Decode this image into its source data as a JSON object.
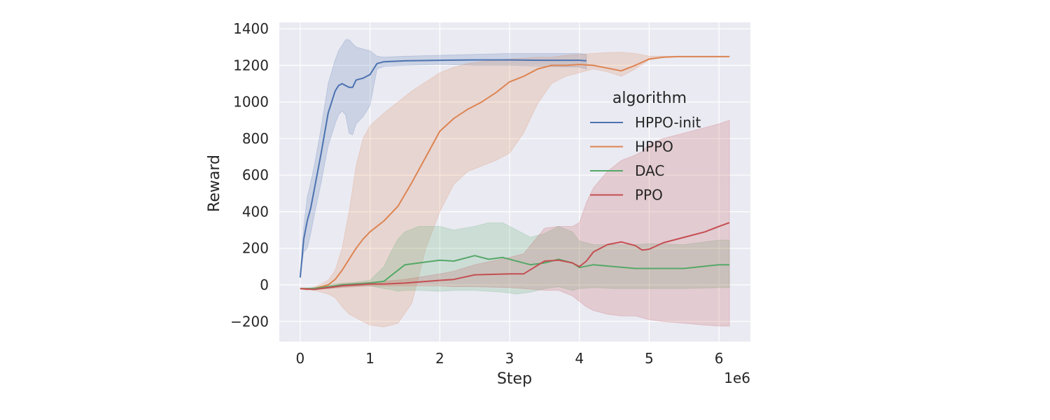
{
  "chart_data": {
    "type": "line",
    "xlabel": "Step",
    "ylabel": "Reward",
    "x_offset_label": "1e6",
    "x_scale": 1000000,
    "xlim": [
      -300000,
      6450000
    ],
    "ylim": [
      -310,
      1435
    ],
    "x_ticks": [
      0,
      1000000,
      2000000,
      3000000,
      4000000,
      5000000,
      6000000
    ],
    "x_tick_labels": [
      "0",
      "1",
      "2",
      "3",
      "4",
      "5",
      "6"
    ],
    "y_ticks": [
      -200,
      0,
      200,
      400,
      600,
      800,
      1000,
      1200,
      1400
    ],
    "y_tick_labels": [
      "−200",
      "0",
      "200",
      "400",
      "600",
      "800",
      "1000",
      "1200",
      "1400"
    ],
    "grid": true,
    "legend": {
      "title": "algorithm",
      "placement": "center-right"
    },
    "series": [
      {
        "name": "HPPO-init",
        "color": "#4c72b0",
        "x": [
          0,
          50000,
          100000,
          150000,
          200000,
          300000,
          400000,
          500000,
          550000,
          600000,
          650000,
          700000,
          750000,
          800000,
          900000,
          1000000,
          1100000,
          1200000,
          1500000,
          2000000,
          2500000,
          3000000,
          3500000,
          4000000,
          4100000
        ],
        "y": [
          40,
          250,
          350,
          420,
          520,
          720,
          940,
          1060,
          1090,
          1100,
          1090,
          1080,
          1080,
          1120,
          1130,
          1150,
          1210,
          1220,
          1225,
          1228,
          1230,
          1230,
          1228,
          1228,
          1225
        ],
        "lower": [
          40,
          180,
          200,
          280,
          380,
          560,
          760,
          880,
          930,
          950,
          930,
          830,
          820,
          880,
          920,
          980,
          1180,
          1195,
          1200,
          1205,
          1200,
          1200,
          1195,
          1190,
          1180
        ],
        "upper": [
          40,
          320,
          480,
          560,
          650,
          860,
          1100,
          1230,
          1280,
          1310,
          1340,
          1340,
          1320,
          1300,
          1290,
          1280,
          1250,
          1245,
          1250,
          1255,
          1260,
          1265,
          1265,
          1265,
          1260
        ]
      },
      {
        "name": "HPPO",
        "color": "#dd8452",
        "x": [
          0,
          100000,
          200000,
          300000,
          400000,
          500000,
          600000,
          700000,
          800000,
          900000,
          1000000,
          1200000,
          1400000,
          1600000,
          1800000,
          2000000,
          2200000,
          2400000,
          2600000,
          2800000,
          3000000,
          3200000,
          3400000,
          3600000,
          3800000,
          4000000,
          4200000,
          4400000,
          4600000,
          4800000,
          5000000,
          5200000,
          5400000,
          5600000,
          5800000,
          6000000,
          6150000
        ],
        "y": [
          -20,
          -25,
          -20,
          -10,
          0,
          30,
          80,
          140,
          200,
          250,
          290,
          350,
          430,
          560,
          700,
          840,
          910,
          960,
          1000,
          1050,
          1110,
          1140,
          1180,
          1200,
          1200,
          1205,
          1200,
          1185,
          1170,
          1200,
          1235,
          1245,
          1248,
          1248,
          1248,
          1248,
          1248
        ],
        "lower": [
          -20,
          -25,
          -30,
          -40,
          -50,
          -70,
          -120,
          -160,
          -180,
          -200,
          -220,
          -230,
          -210,
          -100,
          200,
          400,
          550,
          620,
          650,
          680,
          720,
          830,
          990,
          1100,
          1140,
          1160,
          1180,
          1165,
          1140,
          1180,
          1230,
          1243,
          1246,
          1246,
          1246,
          1246,
          1246
        ],
        "upper": [
          -20,
          -22,
          -10,
          5,
          25,
          80,
          200,
          400,
          650,
          800,
          870,
          940,
          1000,
          1060,
          1110,
          1160,
          1190,
          1210,
          1220,
          1230,
          1235,
          1240,
          1245,
          1245,
          1255,
          1260,
          1265,
          1270,
          1272,
          1265,
          1250,
          1250,
          1250,
          1250,
          1250,
          1250,
          1250
        ]
      },
      {
        "name": "DAC",
        "color": "#55a868",
        "x": [
          0,
          200000,
          400000,
          600000,
          800000,
          1000000,
          1200000,
          1300000,
          1400000,
          1500000,
          1700000,
          2000000,
          2200000,
          2500000,
          2700000,
          2900000,
          3100000,
          3300000,
          3500000,
          3700000,
          3900000,
          4000000,
          4200000,
          4500000,
          4800000,
          5000000,
          5500000,
          6000000,
          6150000
        ],
        "y": [
          -20,
          -20,
          -10,
          0,
          5,
          10,
          20,
          50,
          80,
          110,
          120,
          135,
          130,
          160,
          140,
          150,
          130,
          110,
          120,
          140,
          120,
          95,
          110,
          100,
          90,
          90,
          90,
          110,
          110
        ],
        "lower": [
          -20,
          -25,
          -20,
          -10,
          -5,
          -5,
          -20,
          -25,
          -35,
          -30,
          -30,
          -35,
          -30,
          -30,
          -35,
          -40,
          -50,
          -40,
          -20,
          -10,
          -30,
          -20,
          -15,
          -20,
          -20,
          -20,
          -20,
          -15,
          -15
        ],
        "upper": [
          -20,
          -15,
          0,
          10,
          15,
          25,
          100,
          180,
          250,
          290,
          320,
          320,
          300,
          320,
          340,
          340,
          300,
          260,
          280,
          320,
          290,
          240,
          220,
          220,
          220,
          225,
          220,
          245,
          245
        ]
      },
      {
        "name": "PPO",
        "color": "#c44e52",
        "x": [
          0,
          200000,
          400000,
          600000,
          800000,
          1000000,
          1200000,
          1500000,
          2000000,
          2200000,
          2500000,
          3000000,
          3200000,
          3500000,
          3700000,
          3900000,
          4000000,
          4100000,
          4200000,
          4400000,
          4600000,
          4800000,
          4900000,
          5000000,
          5200000,
          5500000,
          5800000,
          6000000,
          6150000
        ],
        "y": [
          -20,
          -25,
          -15,
          -5,
          0,
          5,
          5,
          10,
          25,
          30,
          55,
          60,
          60,
          130,
          135,
          120,
          100,
          130,
          180,
          220,
          235,
          215,
          190,
          195,
          230,
          260,
          290,
          320,
          340
        ],
        "lower": [
          -20,
          -25,
          -20,
          -15,
          -10,
          -5,
          -5,
          -5,
          -5,
          -10,
          -10,
          -15,
          -20,
          -30,
          -30,
          -60,
          -90,
          -120,
          -140,
          -160,
          -170,
          -170,
          -180,
          -190,
          -200,
          -210,
          -220,
          -225,
          -225
        ],
        "upper": [
          -20,
          -20,
          -10,
          5,
          10,
          15,
          20,
          30,
          60,
          75,
          110,
          150,
          170,
          310,
          320,
          320,
          340,
          450,
          530,
          620,
          680,
          710,
          730,
          770,
          800,
          830,
          860,
          880,
          900
        ]
      }
    ]
  }
}
